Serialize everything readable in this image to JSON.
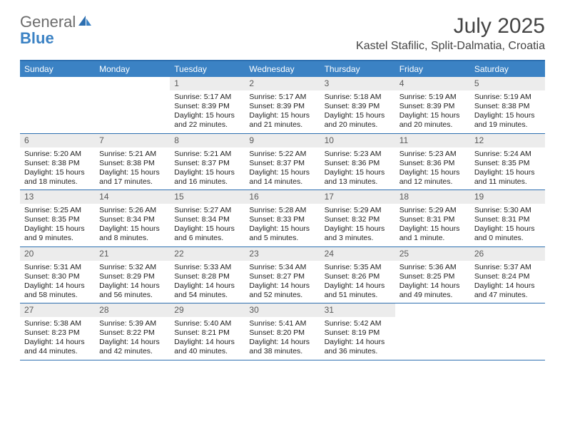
{
  "brand": {
    "general": "General",
    "blue": "Blue"
  },
  "title": "July 2025",
  "location": "Kastel Stafilic, Split-Dalmatia, Croatia",
  "colors": {
    "header_bg": "#3b82c4",
    "border": "#2d6fb0",
    "daynum_bg": "#ececec",
    "text": "#222222"
  },
  "day_labels": [
    "Sunday",
    "Monday",
    "Tuesday",
    "Wednesday",
    "Thursday",
    "Friday",
    "Saturday"
  ],
  "weeks": [
    [
      {
        "n": "",
        "empty": true
      },
      {
        "n": "",
        "empty": true
      },
      {
        "n": "1",
        "sunrise": "Sunrise: 5:17 AM",
        "sunset": "Sunset: 8:39 PM",
        "day1": "Daylight: 15 hours",
        "day2": "and 22 minutes."
      },
      {
        "n": "2",
        "sunrise": "Sunrise: 5:17 AM",
        "sunset": "Sunset: 8:39 PM",
        "day1": "Daylight: 15 hours",
        "day2": "and 21 minutes."
      },
      {
        "n": "3",
        "sunrise": "Sunrise: 5:18 AM",
        "sunset": "Sunset: 8:39 PM",
        "day1": "Daylight: 15 hours",
        "day2": "and 20 minutes."
      },
      {
        "n": "4",
        "sunrise": "Sunrise: 5:19 AM",
        "sunset": "Sunset: 8:39 PM",
        "day1": "Daylight: 15 hours",
        "day2": "and 20 minutes."
      },
      {
        "n": "5",
        "sunrise": "Sunrise: 5:19 AM",
        "sunset": "Sunset: 8:38 PM",
        "day1": "Daylight: 15 hours",
        "day2": "and 19 minutes."
      }
    ],
    [
      {
        "n": "6",
        "sunrise": "Sunrise: 5:20 AM",
        "sunset": "Sunset: 8:38 PM",
        "day1": "Daylight: 15 hours",
        "day2": "and 18 minutes."
      },
      {
        "n": "7",
        "sunrise": "Sunrise: 5:21 AM",
        "sunset": "Sunset: 8:38 PM",
        "day1": "Daylight: 15 hours",
        "day2": "and 17 minutes."
      },
      {
        "n": "8",
        "sunrise": "Sunrise: 5:21 AM",
        "sunset": "Sunset: 8:37 PM",
        "day1": "Daylight: 15 hours",
        "day2": "and 16 minutes."
      },
      {
        "n": "9",
        "sunrise": "Sunrise: 5:22 AM",
        "sunset": "Sunset: 8:37 PM",
        "day1": "Daylight: 15 hours",
        "day2": "and 14 minutes."
      },
      {
        "n": "10",
        "sunrise": "Sunrise: 5:23 AM",
        "sunset": "Sunset: 8:36 PM",
        "day1": "Daylight: 15 hours",
        "day2": "and 13 minutes."
      },
      {
        "n": "11",
        "sunrise": "Sunrise: 5:23 AM",
        "sunset": "Sunset: 8:36 PM",
        "day1": "Daylight: 15 hours",
        "day2": "and 12 minutes."
      },
      {
        "n": "12",
        "sunrise": "Sunrise: 5:24 AM",
        "sunset": "Sunset: 8:35 PM",
        "day1": "Daylight: 15 hours",
        "day2": "and 11 minutes."
      }
    ],
    [
      {
        "n": "13",
        "sunrise": "Sunrise: 5:25 AM",
        "sunset": "Sunset: 8:35 PM",
        "day1": "Daylight: 15 hours",
        "day2": "and 9 minutes."
      },
      {
        "n": "14",
        "sunrise": "Sunrise: 5:26 AM",
        "sunset": "Sunset: 8:34 PM",
        "day1": "Daylight: 15 hours",
        "day2": "and 8 minutes."
      },
      {
        "n": "15",
        "sunrise": "Sunrise: 5:27 AM",
        "sunset": "Sunset: 8:34 PM",
        "day1": "Daylight: 15 hours",
        "day2": "and 6 minutes."
      },
      {
        "n": "16",
        "sunrise": "Sunrise: 5:28 AM",
        "sunset": "Sunset: 8:33 PM",
        "day1": "Daylight: 15 hours",
        "day2": "and 5 minutes."
      },
      {
        "n": "17",
        "sunrise": "Sunrise: 5:29 AM",
        "sunset": "Sunset: 8:32 PM",
        "day1": "Daylight: 15 hours",
        "day2": "and 3 minutes."
      },
      {
        "n": "18",
        "sunrise": "Sunrise: 5:29 AM",
        "sunset": "Sunset: 8:31 PM",
        "day1": "Daylight: 15 hours",
        "day2": "and 1 minute."
      },
      {
        "n": "19",
        "sunrise": "Sunrise: 5:30 AM",
        "sunset": "Sunset: 8:31 PM",
        "day1": "Daylight: 15 hours",
        "day2": "and 0 minutes."
      }
    ],
    [
      {
        "n": "20",
        "sunrise": "Sunrise: 5:31 AM",
        "sunset": "Sunset: 8:30 PM",
        "day1": "Daylight: 14 hours",
        "day2": "and 58 minutes."
      },
      {
        "n": "21",
        "sunrise": "Sunrise: 5:32 AM",
        "sunset": "Sunset: 8:29 PM",
        "day1": "Daylight: 14 hours",
        "day2": "and 56 minutes."
      },
      {
        "n": "22",
        "sunrise": "Sunrise: 5:33 AM",
        "sunset": "Sunset: 8:28 PM",
        "day1": "Daylight: 14 hours",
        "day2": "and 54 minutes."
      },
      {
        "n": "23",
        "sunrise": "Sunrise: 5:34 AM",
        "sunset": "Sunset: 8:27 PM",
        "day1": "Daylight: 14 hours",
        "day2": "and 52 minutes."
      },
      {
        "n": "24",
        "sunrise": "Sunrise: 5:35 AM",
        "sunset": "Sunset: 8:26 PM",
        "day1": "Daylight: 14 hours",
        "day2": "and 51 minutes."
      },
      {
        "n": "25",
        "sunrise": "Sunrise: 5:36 AM",
        "sunset": "Sunset: 8:25 PM",
        "day1": "Daylight: 14 hours",
        "day2": "and 49 minutes."
      },
      {
        "n": "26",
        "sunrise": "Sunrise: 5:37 AM",
        "sunset": "Sunset: 8:24 PM",
        "day1": "Daylight: 14 hours",
        "day2": "and 47 minutes."
      }
    ],
    [
      {
        "n": "27",
        "sunrise": "Sunrise: 5:38 AM",
        "sunset": "Sunset: 8:23 PM",
        "day1": "Daylight: 14 hours",
        "day2": "and 44 minutes."
      },
      {
        "n": "28",
        "sunrise": "Sunrise: 5:39 AM",
        "sunset": "Sunset: 8:22 PM",
        "day1": "Daylight: 14 hours",
        "day2": "and 42 minutes."
      },
      {
        "n": "29",
        "sunrise": "Sunrise: 5:40 AM",
        "sunset": "Sunset: 8:21 PM",
        "day1": "Daylight: 14 hours",
        "day2": "and 40 minutes."
      },
      {
        "n": "30",
        "sunrise": "Sunrise: 5:41 AM",
        "sunset": "Sunset: 8:20 PM",
        "day1": "Daylight: 14 hours",
        "day2": "and 38 minutes."
      },
      {
        "n": "31",
        "sunrise": "Sunrise: 5:42 AM",
        "sunset": "Sunset: 8:19 PM",
        "day1": "Daylight: 14 hours",
        "day2": "and 36 minutes."
      },
      {
        "n": "",
        "empty": true
      },
      {
        "n": "",
        "empty": true
      }
    ]
  ]
}
